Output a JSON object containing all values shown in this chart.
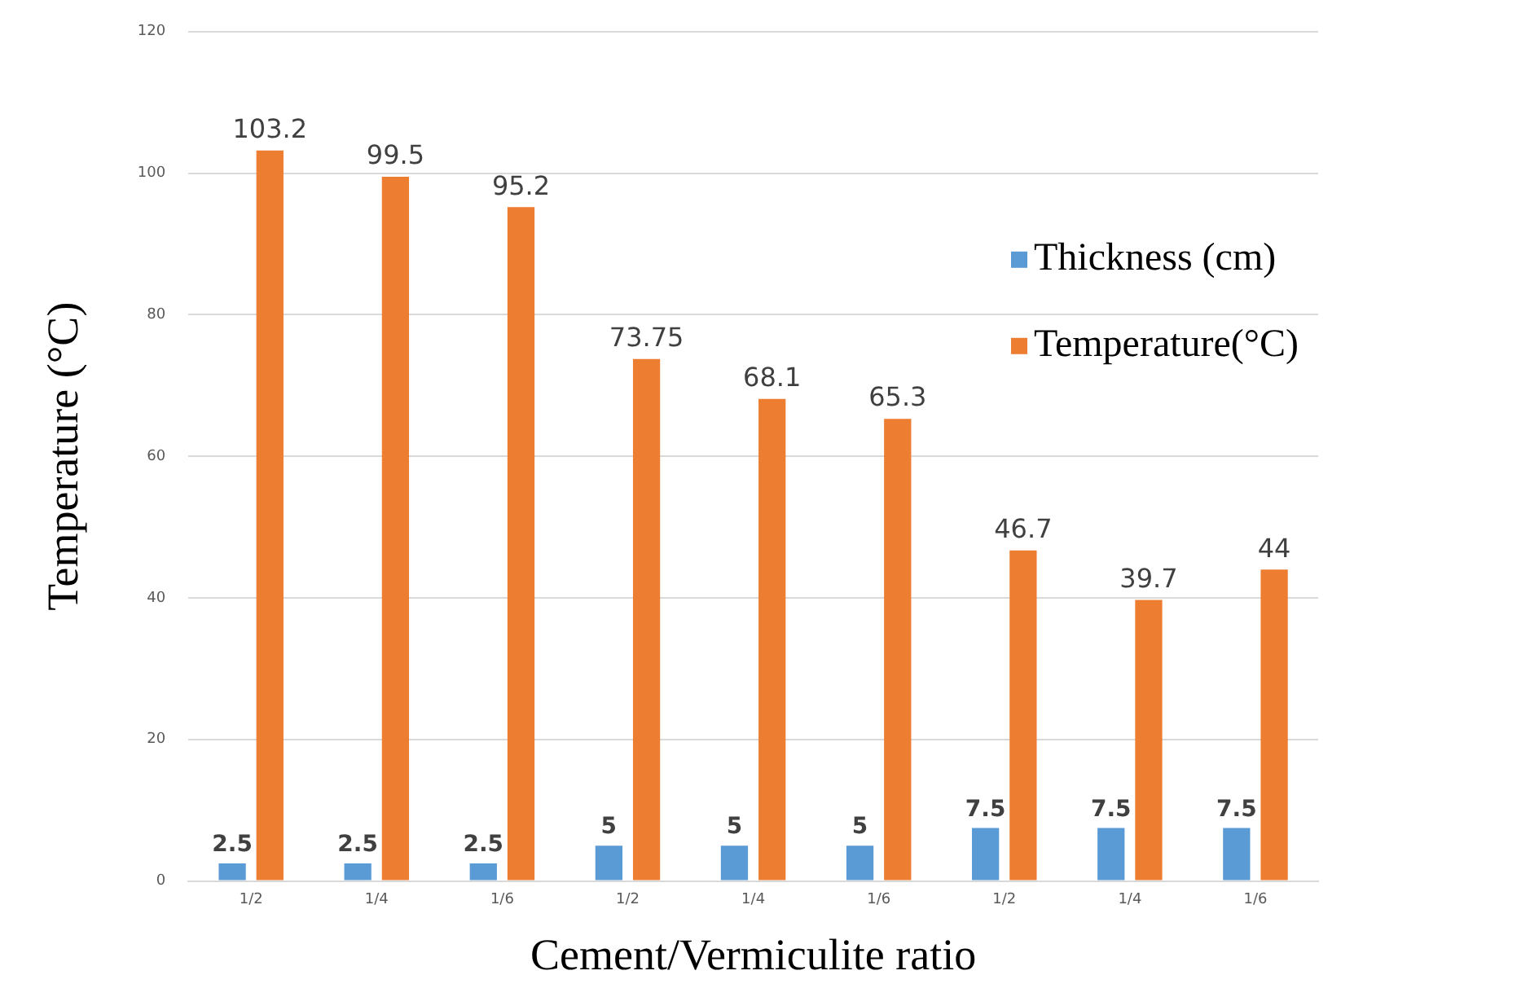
{
  "chart_data": {
    "type": "bar",
    "xlabel": "Cement/Vermiculite ratio",
    "ylabel": "Temperature (°C)",
    "categories": [
      "1/2",
      "1/4",
      "1/6",
      "1/2",
      "1/4",
      "1/6",
      "1/2",
      "1/4",
      "1/6"
    ],
    "series": [
      {
        "name": "Thickness (cm)",
        "color": "#5b9bd5",
        "values": [
          2.5,
          2.5,
          2.5,
          5,
          5,
          5,
          7.5,
          7.5,
          7.5
        ]
      },
      {
        "name": "Temperature(°C)",
        "color": "#ed7d31",
        "values": [
          103.2,
          99.5,
          95.2,
          73.75,
          68.1,
          65.3,
          46.7,
          39.7,
          44
        ]
      }
    ],
    "ylim": [
      0,
      120
    ],
    "yticks": [
      0,
      20,
      40,
      60,
      80,
      100,
      120
    ],
    "grid": "y",
    "legend": "right",
    "data_labels": true
  }
}
